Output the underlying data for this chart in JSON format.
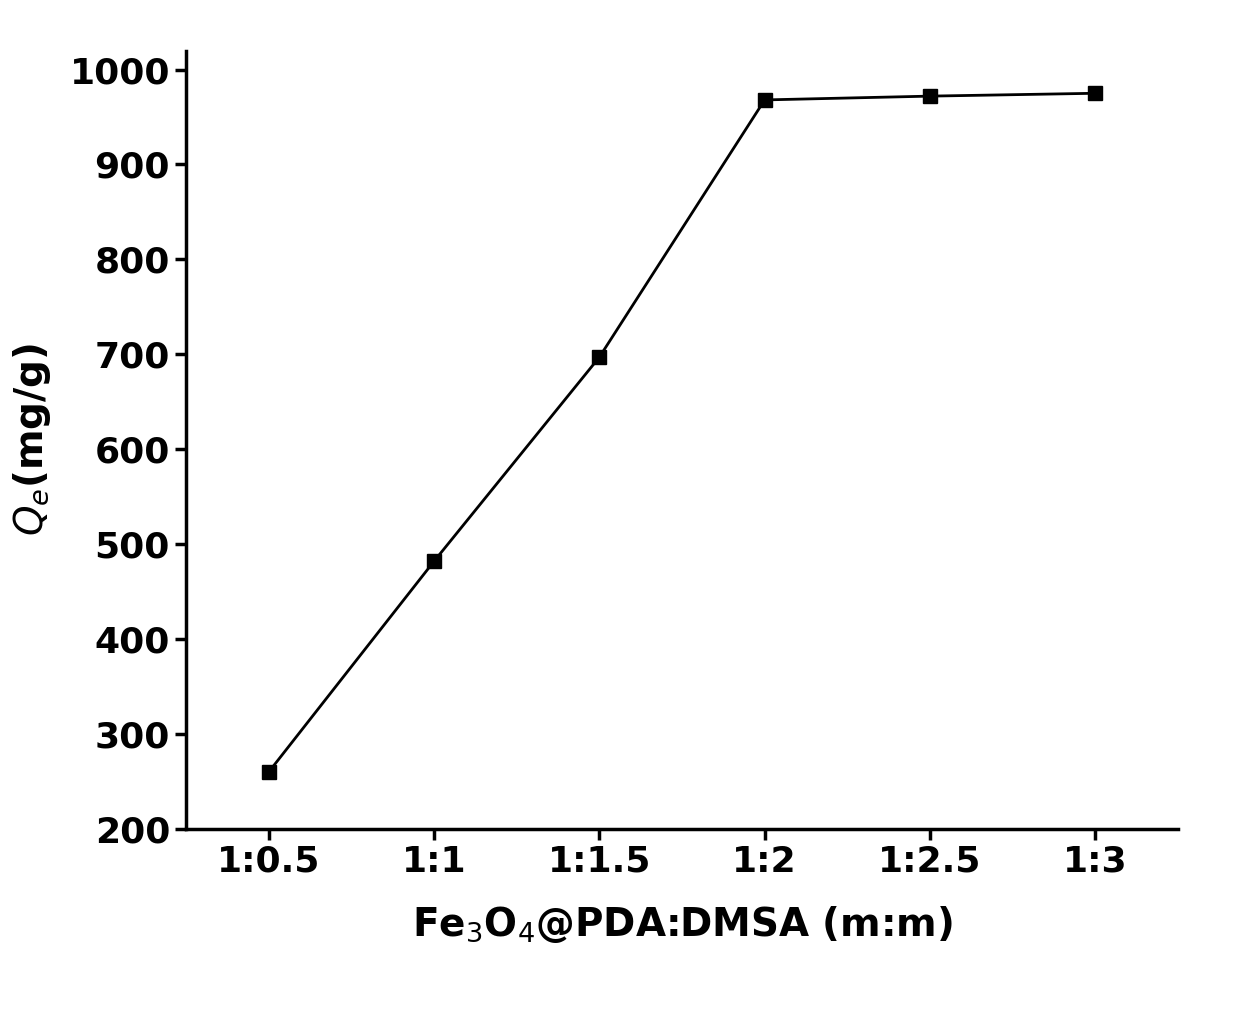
{
  "x_labels": [
    "1:0.5",
    "1:1",
    "1:1.5",
    "1:2",
    "1:2.5",
    "1:3"
  ],
  "y_values": [
    260,
    482,
    697,
    968,
    972,
    975
  ],
  "ylabel": "$Q_e$(mg/g)",
  "xlabel": "Fe$_3$O$_4$@PDA:DMSA (m:m)",
  "ylim": [
    200,
    1020
  ],
  "yticks": [
    200,
    300,
    400,
    500,
    600,
    700,
    800,
    900,
    1000
  ],
  "line_color": "#000000",
  "marker_color": "#000000",
  "marker_style": "s",
  "marker_size": 10,
  "line_width": 2.0,
  "background_color": "#ffffff",
  "tick_fontsize": 26,
  "label_fontsize": 28,
  "spine_linewidth": 2.5
}
